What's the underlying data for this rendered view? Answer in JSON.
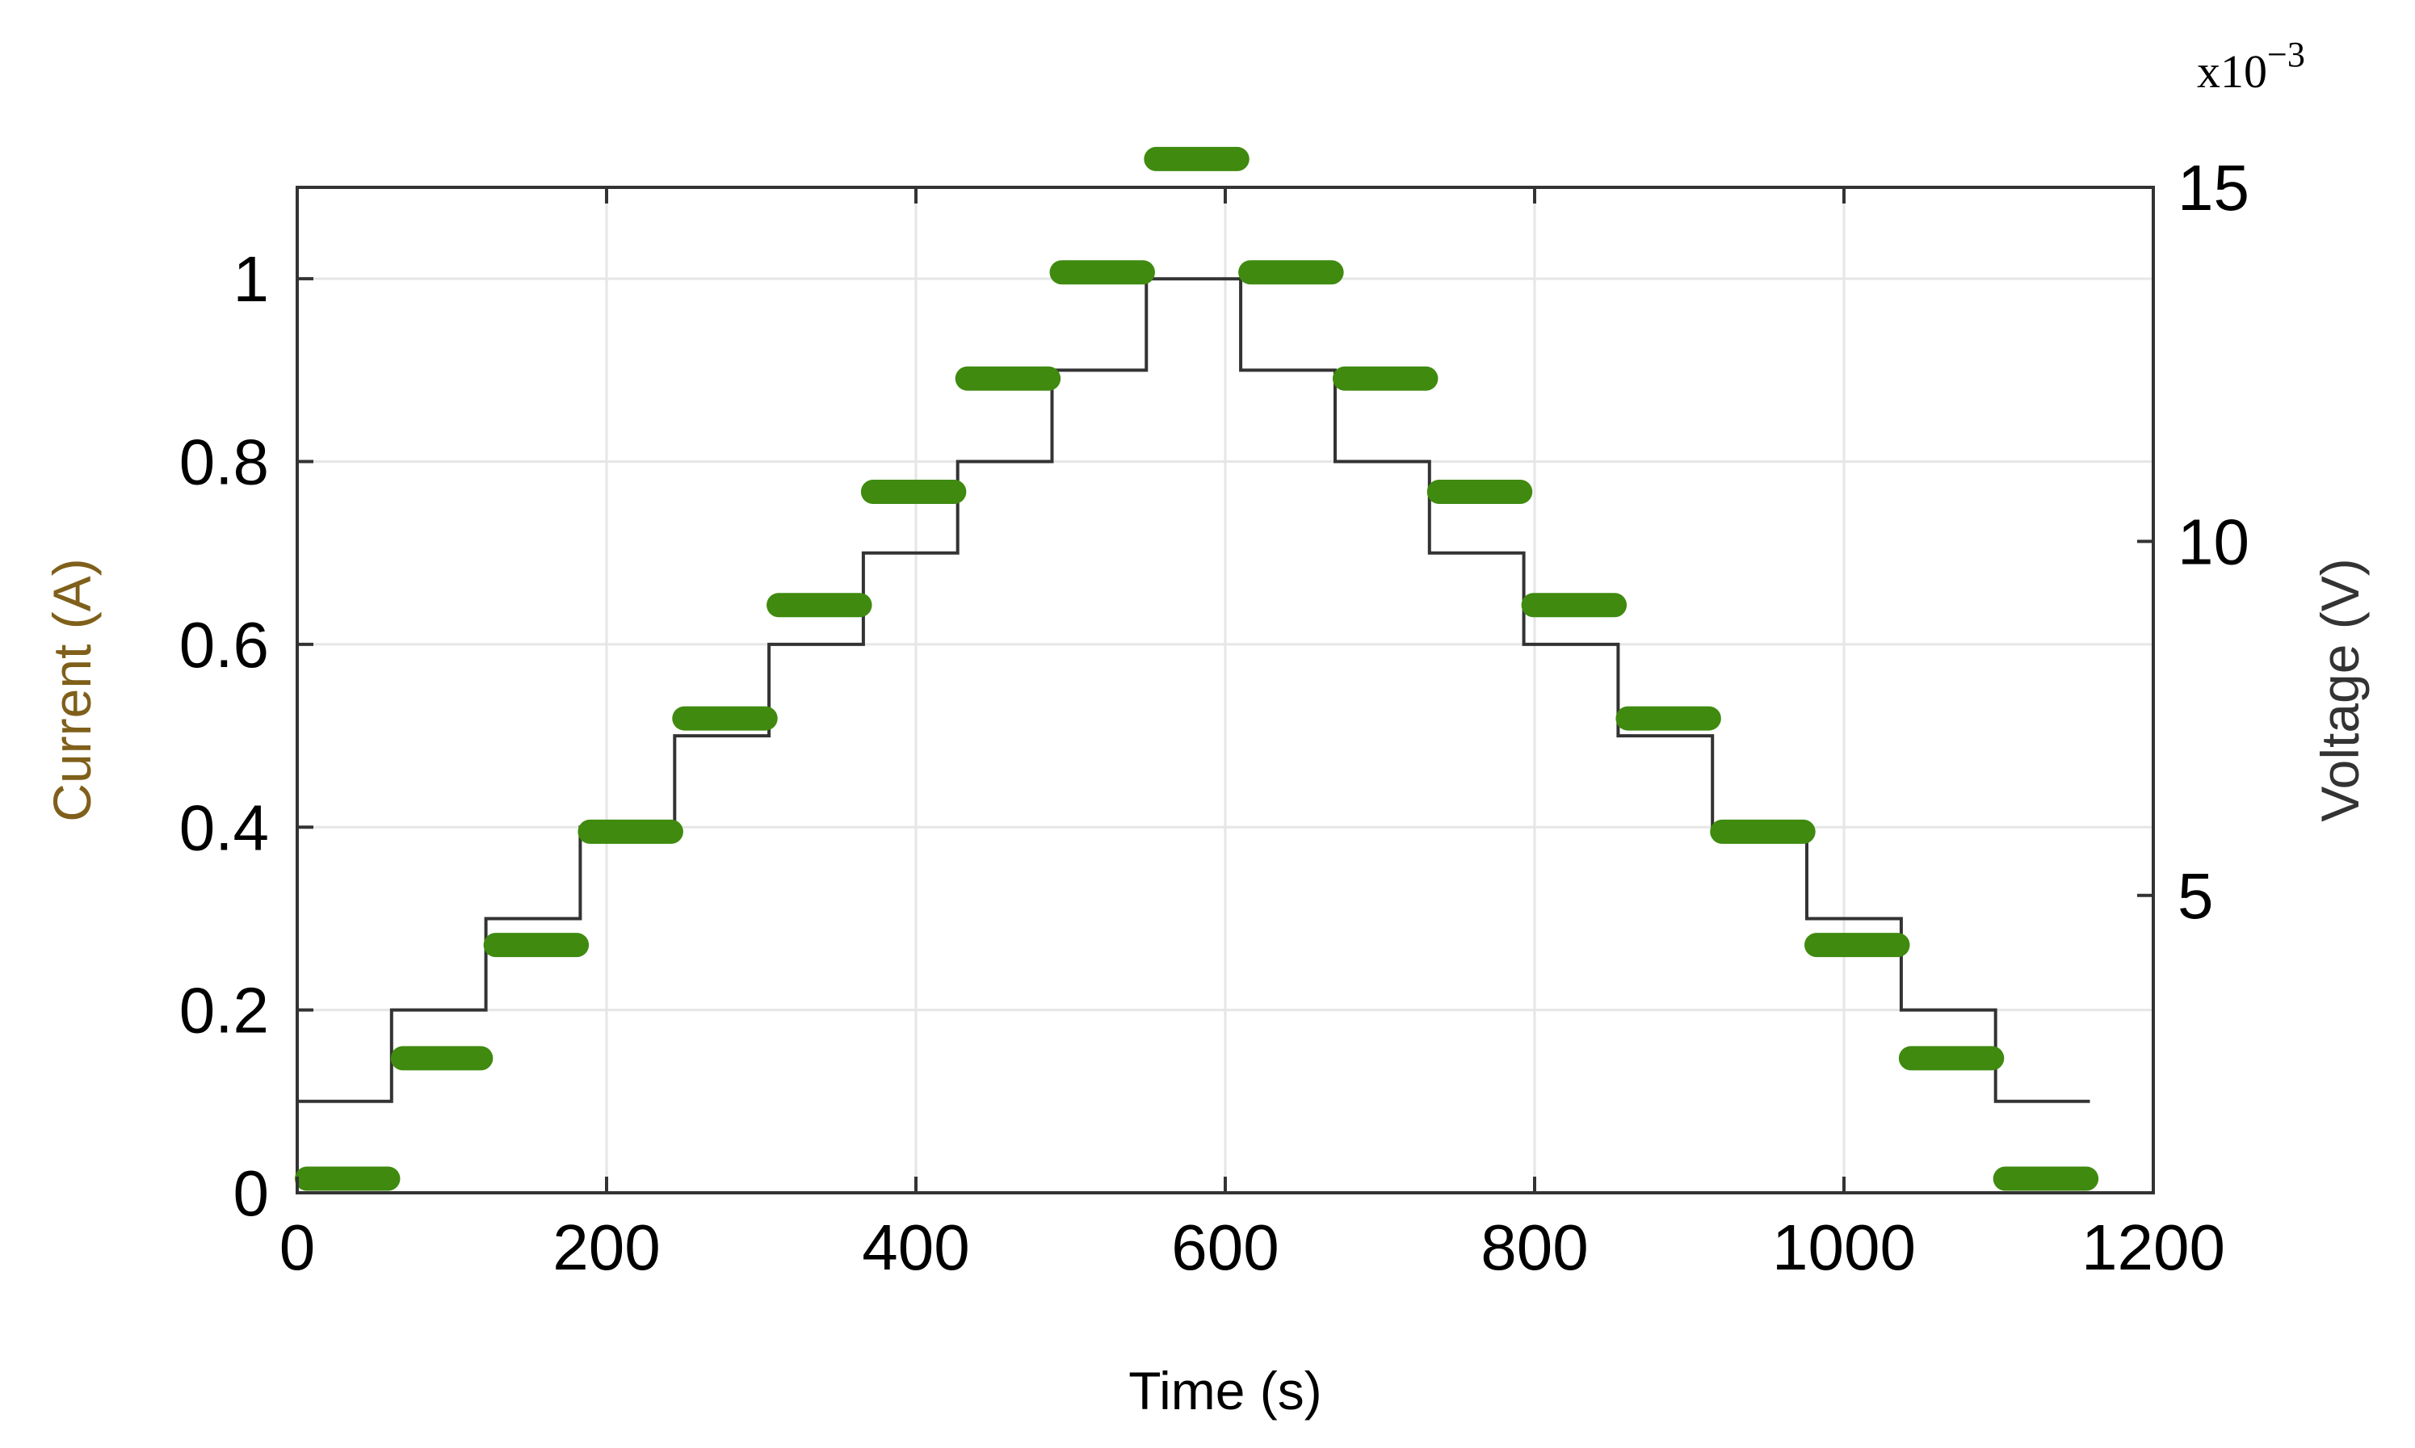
{
  "chart_data": {
    "type": "line",
    "xlabel": "Time (s)",
    "ylabel_left": "Current (A)",
    "ylabel_right": "Voltage (V)",
    "right_axis_exponent": {
      "base": "x10",
      "power": "−3"
    },
    "xlim": [
      0,
      1200
    ],
    "ylim_left": [
      0,
      1.1
    ],
    "ylim_right": [
      0.8,
      15
    ],
    "x_ticks": [
      0,
      200,
      400,
      600,
      800,
      1000,
      1200
    ],
    "y_left_ticks": [
      0,
      0.2,
      0.4,
      0.6,
      0.8,
      1
    ],
    "y_right_ticks": [
      5,
      10,
      15
    ],
    "grid": true,
    "series": [
      {
        "axis": "left",
        "style": "step",
        "color": "#333333",
        "x": [
          0,
          61,
          61,
          122,
          122,
          183,
          183,
          244,
          244,
          305,
          305,
          366,
          366,
          427,
          427,
          488,
          488,
          549,
          549,
          610,
          610,
          671,
          671,
          732,
          732,
          793,
          793,
          854,
          854,
          915,
          915,
          976,
          976,
          1037,
          1037,
          1098,
          1098,
          1159
        ],
        "y": [
          0.1,
          0.1,
          0.2,
          0.2,
          0.3,
          0.3,
          0.4,
          0.4,
          0.5,
          0.5,
          0.6,
          0.6,
          0.7,
          0.7,
          0.8,
          0.8,
          0.9,
          0.9,
          1.0,
          1.0,
          0.9,
          0.9,
          0.8,
          0.8,
          0.7,
          0.7,
          0.6,
          0.6,
          0.5,
          0.5,
          0.4,
          0.4,
          0.3,
          0.3,
          0.2,
          0.2,
          0.1,
          0.1
        ]
      },
      {
        "axis": "right",
        "style": "segments",
        "color": "#3f8a0f",
        "segments": [
          {
            "x0": 0,
            "x1": 65,
            "y": 0.001
          },
          {
            "x0": 62,
            "x1": 125,
            "y": 0.0027
          },
          {
            "x0": 122,
            "x1": 187,
            "y": 0.0043
          },
          {
            "x0": 183,
            "x1": 248,
            "y": 0.0059
          },
          {
            "x0": 244,
            "x1": 309,
            "y": 0.0075
          },
          {
            "x0": 305,
            "x1": 370,
            "y": 0.0091
          },
          {
            "x0": 366,
            "x1": 431,
            "y": 0.0107
          },
          {
            "x0": 427,
            "x1": 492,
            "y": 0.0123
          },
          {
            "x0": 488,
            "x1": 553,
            "y": 0.0138
          },
          {
            "x0": 549,
            "x1": 614,
            "y": 0.0154
          },
          {
            "x0": 610,
            "x1": 675,
            "y": 0.0138
          },
          {
            "x0": 671,
            "x1": 736,
            "y": 0.0123
          },
          {
            "x0": 732,
            "x1": 797,
            "y": 0.0107
          },
          {
            "x0": 793,
            "x1": 858,
            "y": 0.0091
          },
          {
            "x0": 854,
            "x1": 919,
            "y": 0.0075
          },
          {
            "x0": 915,
            "x1": 980,
            "y": 0.0059
          },
          {
            "x0": 976,
            "x1": 1041,
            "y": 0.0043
          },
          {
            "x0": 1037,
            "x1": 1102,
            "y": 0.0027
          },
          {
            "x0": 1098,
            "x1": 1163,
            "y": 0.001
          }
        ]
      }
    ],
    "colors": {
      "left_axis_label": "#7f5f1a",
      "right_axis_label": "#333333",
      "grid": "#e6e6e6",
      "frame": "#333333"
    }
  }
}
